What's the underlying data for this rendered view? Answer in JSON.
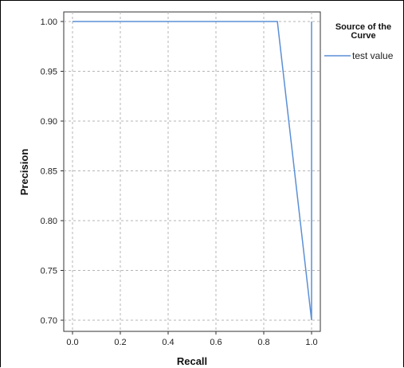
{
  "chart_data": {
    "type": "line",
    "title": "",
    "xlabel": "Recall",
    "ylabel": "Precision",
    "xlim": [
      0.0,
      1.0
    ],
    "ylim": [
      0.7,
      1.0
    ],
    "x_ticks": [
      "0.0",
      "0.2",
      "0.4",
      "0.6",
      "0.8",
      "1.0"
    ],
    "y_ticks": [
      "0.70",
      "0.75",
      "0.80",
      "0.85",
      "0.90",
      "0.95",
      "1.00"
    ],
    "grid": true,
    "legend": {
      "title_line1": "Source of the",
      "title_line2": "Curve",
      "placement": "right"
    },
    "series": [
      {
        "name": "test value",
        "color": "#5b8fd6",
        "x": [
          0.0,
          0.857,
          1.0,
          1.0
        ],
        "y": [
          1.0,
          1.0,
          0.7,
          1.0
        ]
      }
    ]
  }
}
